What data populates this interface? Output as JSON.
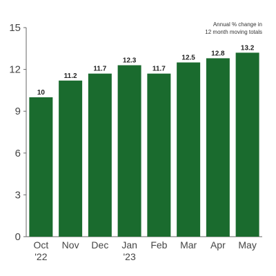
{
  "chart_data": {
    "type": "bar",
    "categories": [
      "Oct '22",
      "Nov",
      "Dec",
      "Jan '23",
      "Feb",
      "Mar",
      "Apr",
      "May"
    ],
    "category_lines": [
      [
        "Oct",
        "'22"
      ],
      [
        "Nov"
      ],
      [
        "Dec"
      ],
      [
        "Jan",
        "'23"
      ],
      [
        "Feb"
      ],
      [
        "Mar"
      ],
      [
        "Apr"
      ],
      [
        "May"
      ]
    ],
    "values": [
      10,
      11.2,
      11.7,
      12.3,
      11.7,
      12.5,
      12.8,
      13.2
    ],
    "data_labels": [
      "10",
      "11.2",
      "11.7",
      "12.3",
      "11.7",
      "12.5",
      "12.8",
      "13.2"
    ],
    "yticks": [
      0,
      3,
      6,
      9,
      12,
      15
    ],
    "ylim": [
      0,
      15
    ],
    "annotation": [
      "Annual % change in",
      "12 month moving totals"
    ],
    "grid": false,
    "colors": {
      "bar": "#1a6b2e",
      "axis": "#666666",
      "tick_label": "#444444",
      "data_label": "#222222"
    }
  }
}
